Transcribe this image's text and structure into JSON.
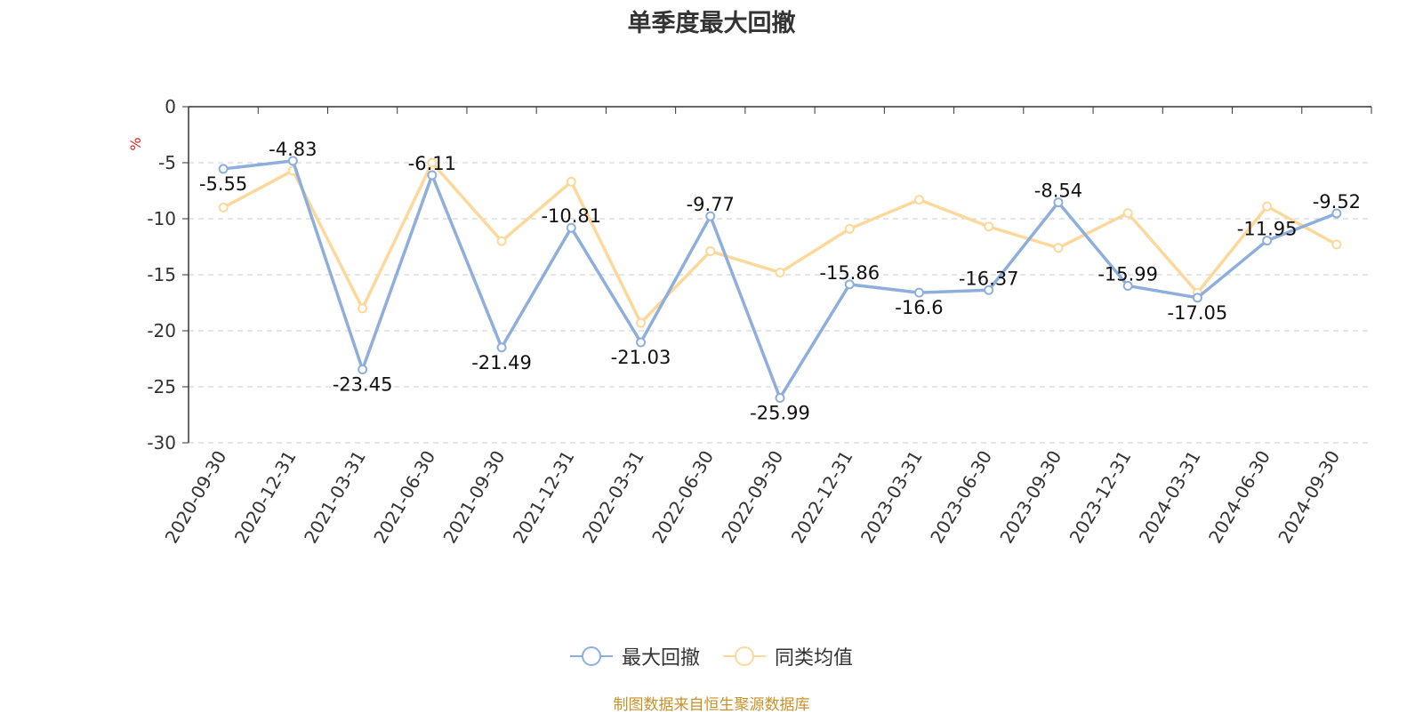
{
  "chart_data": {
    "type": "line",
    "title": "单季度最大回撤",
    "ylabel": "%",
    "ylim": [
      -30,
      0
    ],
    "yticks": [
      0,
      -5,
      -10,
      -15,
      -20,
      -25,
      -30
    ],
    "grid": true,
    "legend_position": "bottom",
    "categories": [
      "2020-09-30",
      "2020-12-31",
      "2021-03-31",
      "2021-06-30",
      "2021-09-30",
      "2021-12-31",
      "2022-03-31",
      "2022-06-30",
      "2022-09-30",
      "2022-12-31",
      "2023-03-31",
      "2023-06-30",
      "2023-09-30",
      "2023-12-31",
      "2024-03-31",
      "2024-06-30",
      "2024-09-30"
    ],
    "series": [
      {
        "name": "最大回撤",
        "color": "#8eaedc",
        "values": [
          -5.55,
          -4.83,
          -23.45,
          -6.11,
          -21.49,
          -10.81,
          -21.03,
          -9.77,
          -25.99,
          -15.86,
          -16.6,
          -16.37,
          -8.54,
          -15.99,
          -17.05,
          -11.95,
          -9.52
        ],
        "labels": [
          "-5.55",
          "-4.83",
          "-23.45",
          "-6.11",
          "-21.49",
          "-10.81",
          "-21.03",
          "-9.77",
          "-25.99",
          "-15.86",
          "-16.6",
          "-16.37",
          "-8.54",
          "-15.99",
          "-17.05",
          "-11.95",
          "-9.52"
        ]
      },
      {
        "name": "同类均值",
        "color": "#fcd99a",
        "values": [
          -9.0,
          -5.7,
          -18.0,
          -5.0,
          -12.0,
          -6.7,
          -19.3,
          -12.9,
          -14.8,
          -10.9,
          -8.3,
          -10.7,
          -12.6,
          -9.5,
          -16.6,
          -8.9,
          -12.3
        ]
      }
    ]
  },
  "footer": {
    "source": "制图数据来自恒生聚源数据库"
  }
}
